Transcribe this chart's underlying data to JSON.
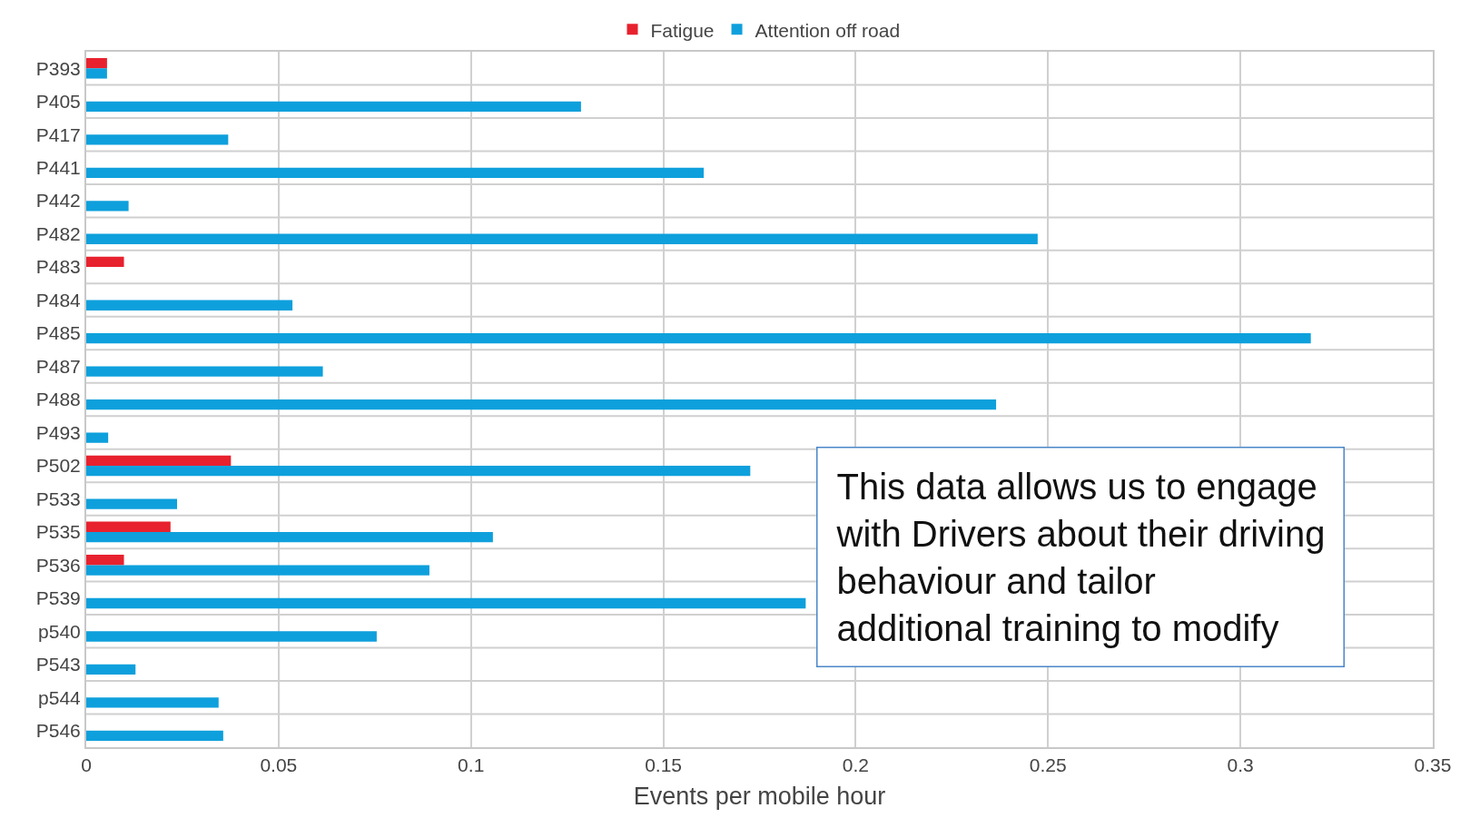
{
  "chart_data": {
    "type": "bar",
    "orientation": "horizontal",
    "xlabel": "Events per mobile hour",
    "categories": [
      "P393",
      "P405",
      "P417",
      "P441",
      "P442",
      "P482",
      "P483",
      "P484",
      "P485",
      "P487",
      "P488",
      "P493",
      "P502",
      "P533",
      "P535",
      "P536",
      "P539",
      "p540",
      "P543",
      "p544",
      "P546"
    ],
    "series": [
      {
        "name": "Fatigue",
        "color": "#e8212e",
        "values": [
          0.0054,
          null,
          null,
          null,
          null,
          null,
          0.0098,
          null,
          null,
          null,
          null,
          null,
          0.0376,
          null,
          0.0219,
          0.0098,
          null,
          null,
          null,
          null,
          null
        ]
      },
      {
        "name": "Attention off road",
        "color": "#0ea0dc",
        "values": [
          0.0054,
          0.1286,
          0.0369,
          0.1605,
          0.011,
          0.2473,
          null,
          0.0536,
          0.3183,
          0.0615,
          0.2365,
          0.0057,
          0.1726,
          0.0236,
          0.1057,
          0.0892,
          0.187,
          0.0755,
          0.0128,
          0.0344,
          0.0356
        ]
      }
    ],
    "xlim": [
      0,
      0.35
    ],
    "xticks": [
      0,
      0.05,
      0.1,
      0.15,
      0.2,
      0.25,
      0.3,
      0.35
    ],
    "grid": true,
    "legend": "top",
    "annotations": [
      "This data allows us to engage\nwith Drivers about their driving\nbehaviour and tailor\nadditional training to modify"
    ]
  }
}
